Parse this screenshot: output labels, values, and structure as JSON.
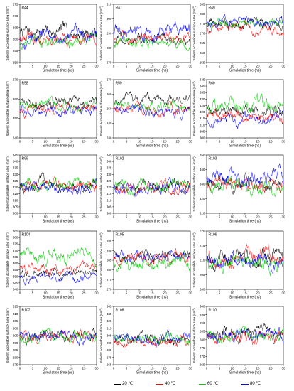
{
  "figure": {
    "xlabel": "Simulation time (ns)",
    "ylabel_base": "Solvent accessible surface area (nm",
    "ylabel_sup": "2",
    "ylabel_end": ")"
  },
  "legend": {
    "items": [
      {
        "label": "20 ℃",
        "color": "#000000"
      },
      {
        "label": "40 ℃",
        "color": "#ff0000"
      },
      {
        "label": "60 ℃",
        "color": "#00cc00"
      },
      {
        "label": "80 ℃",
        "color": "#0000ff"
      }
    ]
  },
  "chart_data": [
    {
      "type": "line",
      "panel": "R44",
      "xlim": [
        0,
        30
      ],
      "xticks": [
        0,
        5,
        10,
        15,
        20,
        25,
        30
      ],
      "ylim": [
        250,
        275
      ],
      "yticks": [
        250,
        255,
        260,
        265,
        270,
        275
      ],
      "series": [
        {
          "name": "20 ℃",
          "mean": 263,
          "amp": 3.5
        },
        {
          "name": "40 ℃",
          "mean": 260,
          "amp": 3
        },
        {
          "name": "60 ℃",
          "mean": 259,
          "amp": 3
        },
        {
          "name": "80 ℃",
          "mean": 261,
          "amp": 3.5
        }
      ]
    },
    {
      "type": "line",
      "panel": "R47",
      "xlim": [
        0,
        30
      ],
      "xticks": [
        0,
        5,
        10,
        15,
        20,
        25,
        30
      ],
      "ylim": [
        270,
        310
      ],
      "yticks": [
        270,
        280,
        290,
        300,
        310
      ],
      "series": [
        {
          "name": "20 ℃",
          "mean": 285,
          "amp": 4
        },
        {
          "name": "40 ℃",
          "mean": 287,
          "amp": 4
        },
        {
          "name": "60 ℃",
          "mean": 282,
          "amp": 4
        },
        {
          "name": "80 ℃",
          "mean": 292,
          "amp": 6
        }
      ]
    },
    {
      "type": "line",
      "panel": "R49",
      "xlim": [
        0,
        30
      ],
      "xticks": [
        0,
        5,
        10,
        15,
        20,
        25,
        30
      ],
      "ylim": [
        255,
        285
      ],
      "yticks": [
        255,
        260,
        265,
        270,
        275,
        280,
        285
      ],
      "series": [
        {
          "name": "20 ℃",
          "mean": 275,
          "amp": 3
        },
        {
          "name": "40 ℃",
          "mean": 273,
          "amp": 3
        },
        {
          "name": "60 ℃",
          "mean": 275,
          "amp": 3
        },
        {
          "name": "80 ℃",
          "mean": 276,
          "amp": 3
        }
      ]
    },
    {
      "type": "line",
      "panel": "R58",
      "xlim": [
        0,
        30
      ],
      "xticks": [
        0,
        5,
        10,
        15,
        20,
        25,
        30
      ],
      "ylim": [
        240,
        270
      ],
      "yticks": [
        240,
        250,
        260,
        270
      ],
      "series": [
        {
          "name": "20 ℃",
          "mean": 258,
          "amp": 3
        },
        {
          "name": "40 ℃",
          "mean": 255,
          "amp": 3
        },
        {
          "name": "60 ℃",
          "mean": 257,
          "amp": 3
        },
        {
          "name": "80 ℃",
          "mean": 254,
          "amp": 3
        }
      ]
    },
    {
      "type": "line",
      "panel": "R59",
      "xlim": [
        0,
        30
      ],
      "xticks": [
        0,
        5,
        10,
        15,
        20,
        25,
        30
      ],
      "ylim": [
        230,
        270
      ],
      "yticks": [
        230,
        240,
        250,
        260,
        270
      ],
      "series": [
        {
          "name": "20 ℃",
          "mean": 256,
          "amp": 4
        },
        {
          "name": "40 ℃",
          "mean": 250,
          "amp": 4
        },
        {
          "name": "60 ℃",
          "mean": 252,
          "amp": 4
        },
        {
          "name": "80 ℃",
          "mean": 248,
          "amp": 4
        }
      ]
    },
    {
      "type": "line",
      "panel": "R60",
      "xlim": [
        0,
        30
      ],
      "xticks": [
        0,
        5,
        10,
        15,
        20,
        25,
        30
      ],
      "ylim": [
        300,
        345
      ],
      "yticks": [
        300,
        305,
        310,
        315,
        320,
        325,
        330,
        335,
        340,
        345
      ],
      "series": [
        {
          "name": "20 ℃",
          "mean": 320,
          "amp": 5
        },
        {
          "name": "40 ℃",
          "mean": 316,
          "amp": 5
        },
        {
          "name": "60 ℃",
          "mean": 326,
          "amp": 6
        },
        {
          "name": "80 ℃",
          "mean": 315,
          "amp": 5
        }
      ]
    },
    {
      "type": "line",
      "panel": "R99",
      "xlim": [
        0,
        30
      ],
      "xticks": [
        0,
        5,
        10,
        15,
        20,
        25,
        30
      ],
      "ylim": [
        300,
        345
      ],
      "yticks": [
        300,
        305,
        310,
        315,
        320,
        325,
        330,
        335,
        340,
        345
      ],
      "series": [
        {
          "name": "20 ℃",
          "mean": 322,
          "amp": 5
        },
        {
          "name": "40 ℃",
          "mean": 321,
          "amp": 5
        },
        {
          "name": "60 ℃",
          "mean": 321,
          "amp": 5
        },
        {
          "name": "80 ℃",
          "mean": 320,
          "amp": 5
        }
      ]
    },
    {
      "type": "line",
      "panel": "R102",
      "xlim": [
        0,
        30
      ],
      "xticks": [
        0,
        5,
        10,
        15,
        20,
        25,
        30
      ],
      "ylim": [
        300,
        345
      ],
      "yticks": [
        300,
        305,
        310,
        315,
        320,
        325,
        330,
        335,
        340,
        345
      ],
      "series": [
        {
          "name": "20 ℃",
          "mean": 322,
          "amp": 5
        },
        {
          "name": "40 ℃",
          "mean": 320,
          "amp": 5
        },
        {
          "name": "60 ℃",
          "mean": 320,
          "amp": 5
        },
        {
          "name": "80 ℃",
          "mean": 319,
          "amp": 5
        }
      ]
    },
    {
      "type": "line",
      "panel": "R103",
      "xlim": [
        0,
        30
      ],
      "xticks": [
        0,
        5,
        10,
        15,
        20,
        25,
        30
      ],
      "ylim": [
        310,
        350
      ],
      "yticks": [
        310,
        320,
        330,
        340,
        350
      ],
      "series": [
        {
          "name": "20 ℃",
          "mean": 330,
          "amp": 5
        },
        {
          "name": "40 ℃",
          "mean": 330,
          "amp": 5
        },
        {
          "name": "60 ℃",
          "mean": 328,
          "amp": 5
        },
        {
          "name": "80 ℃",
          "mean": 333,
          "amp": 6
        }
      ]
    },
    {
      "type": "line",
      "panel": "R104",
      "xlim": [
        0,
        30
      ],
      "xticks": [
        0,
        5,
        10,
        15,
        20,
        25,
        30
      ],
      "ylim": [
        340,
        385
      ],
      "yticks": [
        340,
        345,
        350,
        355,
        360,
        365,
        370,
        375,
        380,
        385
      ],
      "series": [
        {
          "name": "20 ℃",
          "mean": 353,
          "amp": 4
        },
        {
          "name": "40 ℃",
          "mean": 356,
          "amp": 4
        },
        {
          "name": "60 ℃",
          "mean": 365,
          "amp": 6
        },
        {
          "name": "80 ℃",
          "mean": 350,
          "amp": 4
        }
      ]
    },
    {
      "type": "line",
      "panel": "R105",
      "xlim": [
        0,
        30
      ],
      "xticks": [
        0,
        5,
        10,
        15,
        20,
        25,
        30
      ],
      "ylim": [
        270,
        300
      ],
      "yticks": [
        270,
        275,
        280,
        285,
        290,
        295,
        300
      ],
      "series": [
        {
          "name": "20 ℃",
          "mean": 287,
          "amp": 3
        },
        {
          "name": "40 ℃",
          "mean": 286,
          "amp": 3
        },
        {
          "name": "60 ℃",
          "mean": 283,
          "amp": 4
        },
        {
          "name": "80 ℃",
          "mean": 287,
          "amp": 3
        }
      ]
    },
    {
      "type": "line",
      "panel": "R106",
      "xlim": [
        0,
        30
      ],
      "xticks": [
        0,
        5,
        10,
        15,
        20,
        25,
        30
      ],
      "ylim": [
        200,
        220
      ],
      "yticks": [
        200,
        205,
        210,
        215,
        220
      ],
      "series": [
        {
          "name": "20 ℃",
          "mean": 211,
          "amp": 3
        },
        {
          "name": "40 ℃",
          "mean": 210,
          "amp": 3
        },
        {
          "name": "60 ℃",
          "mean": 209,
          "amp": 3
        },
        {
          "name": "80 ℃",
          "mean": 210,
          "amp": 3
        }
      ]
    },
    {
      "type": "line",
      "panel": "R107",
      "xlim": [
        0,
        30
      ],
      "xticks": [
        0,
        5,
        10,
        15,
        20,
        25,
        30
      ],
      "ylim": [
        275,
        315
      ],
      "yticks": [
        275,
        280,
        285,
        290,
        295,
        300,
        305,
        310,
        315
      ],
      "series": [
        {
          "name": "20 ℃",
          "mean": 295,
          "amp": 4
        },
        {
          "name": "40 ℃",
          "mean": 294,
          "amp": 4
        },
        {
          "name": "60 ℃",
          "mean": 294,
          "amp": 4
        },
        {
          "name": "80 ℃",
          "mean": 295,
          "amp": 4
        }
      ]
    },
    {
      "type": "line",
      "panel": "R108",
      "xlim": [
        0,
        30
      ],
      "xticks": [
        0,
        5,
        10,
        15,
        20,
        25,
        30
      ],
      "ylim": [
        265,
        345
      ],
      "yticks": [
        265,
        275,
        285,
        295,
        305,
        315,
        325,
        335,
        345
      ],
      "series": [
        {
          "name": "20 ℃",
          "mean": 300,
          "amp": 8
        },
        {
          "name": "40 ℃",
          "mean": 298,
          "amp": 8
        },
        {
          "name": "60 ℃",
          "mean": 299,
          "amp": 8
        },
        {
          "name": "80 ℃",
          "mean": 300,
          "amp": 8
        }
      ]
    },
    {
      "type": "line",
      "panel": "R110",
      "xlim": [
        0,
        30
      ],
      "xticks": [
        0,
        5,
        10,
        15,
        20,
        25,
        30
      ],
      "ylim": [
        265,
        300
      ],
      "yticks": [
        265,
        270,
        275,
        280,
        285,
        290,
        295,
        300
      ],
      "series": [
        {
          "name": "20 ℃",
          "mean": 284,
          "amp": 4
        },
        {
          "name": "40 ℃",
          "mean": 281,
          "amp": 4
        },
        {
          "name": "60 ℃",
          "mean": 282,
          "amp": 4
        },
        {
          "name": "80 ℃",
          "mean": 283,
          "amp": 4
        }
      ]
    }
  ]
}
